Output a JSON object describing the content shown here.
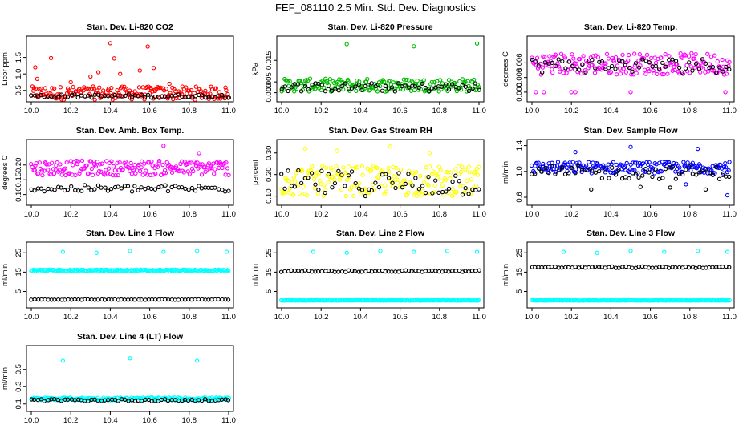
{
  "page": {
    "title": "FEF_081110  2.5 Min. Std. Dev. Diagnostics"
  },
  "colors": {
    "red": "#ff0000",
    "green": "#00bb00",
    "magenta": "#ff00ff",
    "yellow": "#ffff00",
    "blue": "#0000ff",
    "cyan": "#00ffff",
    "black": "#000000"
  },
  "chart_data": [
    {
      "type": "scatter",
      "title": "Stan. Dev. Li-820 CO2",
      "ylabel": "Licor ppm",
      "xlim": [
        10.0,
        11.0
      ],
      "ylim": [
        0.3,
        2.0
      ],
      "xticks": [
        10.0,
        10.2,
        10.4,
        10.6,
        10.8,
        11.0
      ],
      "xtick_labels": [
        "10.0",
        "10.2",
        "10.4",
        "10.6",
        "10.8",
        "11.0"
      ],
      "yticks": [
        0.5,
        1.0,
        1.5
      ],
      "ytick_labels": [
        "0.5",
        "1.0",
        "1.5"
      ],
      "series": [
        {
          "name": "primary",
          "color": "#ff0000",
          "base": 0.42,
          "spread": 0.2,
          "outliers": [
            [
              10.02,
              1.2
            ],
            [
              10.03,
              0.85
            ],
            [
              10.1,
              1.48
            ],
            [
              10.2,
              0.75
            ],
            [
              10.3,
              0.92
            ],
            [
              10.34,
              1.05
            ],
            [
              10.4,
              1.93
            ],
            [
              10.42,
              1.47
            ],
            [
              10.45,
              1.0
            ],
            [
              10.55,
              1.1
            ],
            [
              10.59,
              1.83
            ],
            [
              10.62,
              1.18
            ],
            [
              10.7,
              0.7
            ]
          ]
        },
        {
          "name": "secondary",
          "color": "#000000",
          "base": 0.33,
          "spread": 0.05,
          "outliers": []
        }
      ]
    },
    {
      "type": "scatter",
      "title": "Stan. Dev. Li-820 Pressure",
      "ylabel": "kPa",
      "xlim": [
        10.0,
        11.0
      ],
      "ylim": [
        -0.002,
        0.024
      ],
      "xticks": [
        10.0,
        10.2,
        10.4,
        10.6,
        10.8,
        11.0
      ],
      "xtick_labels": [
        "10.0",
        "10.2",
        "10.4",
        "10.6",
        "10.8",
        "11.0"
      ],
      "yticks": [
        0.0,
        0.005,
        0.015
      ],
      "ytick_labels": [
        "0.000",
        "0.005",
        "0.015"
      ],
      "series": [
        {
          "name": "primary",
          "color": "#00bb00",
          "base": 0.0035,
          "spread": 0.003,
          "outliers": [
            [
              10.33,
              0.0225
            ],
            [
              10.67,
              0.0215
            ],
            [
              10.99,
              0.0228
            ]
          ]
        },
        {
          "name": "secondary",
          "color": "#000000",
          "base": 0.0025,
          "spread": 0.002,
          "outliers": []
        }
      ]
    },
    {
      "type": "scatter",
      "title": "Stan. Dev. Li-820 Temp.",
      "ylabel": "degrees C",
      "xlim": [
        10.0,
        11.0
      ],
      "ylim": [
        -0.001,
        0.0105
      ],
      "xticks": [
        10.0,
        10.2,
        10.4,
        10.6,
        10.8,
        11.0
      ],
      "xtick_labels": [
        "10.0",
        "10.2",
        "10.4",
        "10.6",
        "10.8",
        "11.0"
      ],
      "yticks": [
        0.0,
        0.003,
        0.006
      ],
      "ytick_labels": [
        "0.000",
        "0.003",
        "0.006"
      ],
      "series": [
        {
          "name": "primary",
          "color": "#ff00ff",
          "base": 0.0058,
          "spread": 0.0022,
          "outliers": [
            [
              10.02,
              0.0
            ],
            [
              10.06,
              0.0
            ],
            [
              10.2,
              0.0
            ],
            [
              10.22,
              0.0
            ],
            [
              10.5,
              0.0
            ],
            [
              10.98,
              0.0
            ]
          ]
        },
        {
          "name": "secondary",
          "color": "#000000",
          "base": 0.0055,
          "spread": 0.0015,
          "outliers": []
        }
      ]
    },
    {
      "type": "scatter",
      "title": "Stan. Dev. Amb. Box Temp.",
      "ylabel": "degrees C",
      "xlim": [
        10.0,
        11.0
      ],
      "ylim": [
        0.08,
        0.27
      ],
      "xticks": [
        10.0,
        10.2,
        10.4,
        10.6,
        10.8,
        11.0
      ],
      "xtick_labels": [
        "10.0",
        "10.2",
        "10.4",
        "10.6",
        "10.8",
        "11.0"
      ],
      "yticks": [
        0.1,
        0.15,
        0.2
      ],
      "ytick_labels": [
        "0.10",
        "0.15",
        "0.20"
      ],
      "series": [
        {
          "name": "primary",
          "color": "#ff00ff",
          "base": 0.19,
          "spread": 0.025,
          "outliers": [
            [
              10.67,
              0.265
            ],
            [
              10.85,
              0.24
            ]
          ]
        },
        {
          "name": "secondary",
          "color": "#000000",
          "base": 0.12,
          "spread": 0.012,
          "outliers": []
        }
      ]
    },
    {
      "type": "scatter",
      "title": "Stan. Dev. Gas Stream RH",
      "ylabel": "percent",
      "xlim": [
        10.0,
        11.0
      ],
      "ylim": [
        0.08,
        0.34
      ],
      "xticks": [
        10.0,
        10.2,
        10.4,
        10.6,
        10.8,
        11.0
      ],
      "xtick_labels": [
        "10.0",
        "10.2",
        "10.4",
        "10.6",
        "10.8",
        "11.0"
      ],
      "yticks": [
        0.1,
        0.2,
        0.3
      ],
      "ytick_labels": [
        "0.10",
        "0.20",
        "0.30"
      ],
      "series": [
        {
          "name": "primary",
          "color": "#ffff00",
          "base": 0.17,
          "spread": 0.07,
          "outliers": [
            [
              10.12,
              0.32
            ],
            [
              10.28,
              0.31
            ],
            [
              10.55,
              0.33
            ],
            [
              10.75,
              0.3
            ]
          ]
        },
        {
          "name": "secondary",
          "color": "#000000",
          "base": 0.16,
          "spread": 0.06,
          "outliers": []
        }
      ]
    },
    {
      "type": "scatter",
      "title": "Stan. Dev. Sample Flow",
      "ylabel": "ml/min",
      "xlim": [
        10.0,
        11.0
      ],
      "ylim": [
        0.55,
        1.42
      ],
      "xticks": [
        10.0,
        10.2,
        10.4,
        10.6,
        10.8,
        11.0
      ],
      "xtick_labels": [
        "10.0",
        "10.2",
        "10.4",
        "10.6",
        "10.8",
        "11.0"
      ],
      "yticks": [
        0.6,
        1.0,
        1.4
      ],
      "ytick_labels": [
        "0.6",
        "1.0",
        "1.4"
      ],
      "series": [
        {
          "name": "primary",
          "color": "#0000ff",
          "base": 1.06,
          "spread": 0.09,
          "outliers": [
            [
              10.22,
              1.3
            ],
            [
              10.5,
              1.38
            ],
            [
              10.78,
              0.8
            ],
            [
              10.84,
              1.35
            ],
            [
              10.99,
              0.63
            ]
          ]
        },
        {
          "name": "secondary",
          "color": "#000000",
          "base": 0.98,
          "spread": 0.1,
          "outliers": [
            [
              10.3,
              0.72
            ],
            [
              10.55,
              0.76
            ],
            [
              10.7,
              0.75
            ],
            [
              10.88,
              0.72
            ]
          ]
        }
      ]
    },
    {
      "type": "scatter",
      "title": "Stan. Dev. Line 1 Flow",
      "ylabel": "ml/min",
      "xlim": [
        10.0,
        11.0
      ],
      "ylim": [
        -1,
        28
      ],
      "xticks": [
        10.0,
        10.2,
        10.4,
        10.6,
        10.8,
        11.0
      ],
      "xtick_labels": [
        "10.0",
        "10.2",
        "10.4",
        "10.6",
        "10.8",
        "11.0"
      ],
      "yticks": [
        5,
        15,
        25
      ],
      "ytick_labels": [
        "5",
        "15",
        "25"
      ],
      "series": [
        {
          "name": "primary",
          "color": "#00ffff",
          "base": 15.8,
          "spread": 0.5,
          "outliers": [
            [
              10.16,
              25.5
            ],
            [
              10.33,
              25
            ],
            [
              10.5,
              26
            ],
            [
              10.67,
              25.5
            ],
            [
              10.84,
              26
            ],
            [
              10.99,
              25.5
            ]
          ]
        },
        {
          "name": "secondary",
          "color": "#000000",
          "base": 0.8,
          "spread": 0.1,
          "outliers": []
        }
      ]
    },
    {
      "type": "scatter",
      "title": "Stan. Dev. Line 2 Flow",
      "ylabel": "ml/min",
      "xlim": [
        10.0,
        11.0
      ],
      "ylim": [
        -1,
        28
      ],
      "xticks": [
        10.0,
        10.2,
        10.4,
        10.6,
        10.8,
        11.0
      ],
      "xtick_labels": [
        "10.0",
        "10.2",
        "10.4",
        "10.6",
        "10.8",
        "11.0"
      ],
      "yticks": [
        5,
        15,
        25
      ],
      "ytick_labels": [
        "5",
        "15",
        "25"
      ],
      "series": [
        {
          "name": "primary",
          "color": "#00ffff",
          "base": 0.4,
          "spread": 0.1,
          "outliers": [
            [
              10.16,
              25.5
            ],
            [
              10.33,
              25
            ],
            [
              10.5,
              26
            ],
            [
              10.67,
              25.5
            ],
            [
              10.84,
              26
            ],
            [
              10.99,
              25.5
            ]
          ]
        },
        {
          "name": "secondary",
          "color": "#000000",
          "base": 15.5,
          "spread": 0.4,
          "outliers": []
        }
      ]
    },
    {
      "type": "scatter",
      "title": "Stan. Dev. Line 3 Flow",
      "ylabel": "ml/min",
      "xlim": [
        10.0,
        11.0
      ],
      "ylim": [
        -1,
        28
      ],
      "xticks": [
        10.0,
        10.2,
        10.4,
        10.6,
        10.8,
        11.0
      ],
      "xtick_labels": [
        "10.0",
        "10.2",
        "10.4",
        "10.6",
        "10.8",
        "11.0"
      ],
      "yticks": [
        5,
        15,
        25
      ],
      "ytick_labels": [
        "5",
        "15",
        "25"
      ],
      "series": [
        {
          "name": "primary",
          "color": "#00ffff",
          "base": 0.4,
          "spread": 0.1,
          "outliers": [
            [
              10.16,
              25.5
            ],
            [
              10.33,
              25
            ],
            [
              10.5,
              26
            ],
            [
              10.67,
              25.5
            ],
            [
              10.84,
              26
            ],
            [
              10.99,
              25.5
            ]
          ]
        },
        {
          "name": "secondary",
          "color": "#000000",
          "base": 17.5,
          "spread": 0.4,
          "outliers": []
        }
      ]
    },
    {
      "type": "scatter",
      "title": "Stan. Dev. Line 4 (LT) Flow",
      "ylabel": "ml/min",
      "xlim": [
        10.0,
        11.0
      ],
      "ylim": [
        0.07,
        0.72
      ],
      "xticks": [
        10.0,
        10.2,
        10.4,
        10.6,
        10.8,
        11.0
      ],
      "xtick_labels": [
        "10.0",
        "10.2",
        "10.4",
        "10.6",
        "10.8",
        "11.0"
      ],
      "yticks": [
        0.1,
        0.3,
        0.5
      ],
      "ytick_labels": [
        "0.1",
        "0.3",
        "0.5"
      ],
      "series": [
        {
          "name": "primary",
          "color": "#00ffff",
          "base": 0.16,
          "spread": 0.015,
          "outliers": [
            [
              10.16,
              0.6
            ],
            [
              10.5,
              0.63
            ],
            [
              10.84,
              0.6
            ]
          ]
        },
        {
          "name": "secondary",
          "color": "#000000",
          "base": 0.145,
          "spread": 0.012,
          "outliers": []
        }
      ]
    }
  ]
}
